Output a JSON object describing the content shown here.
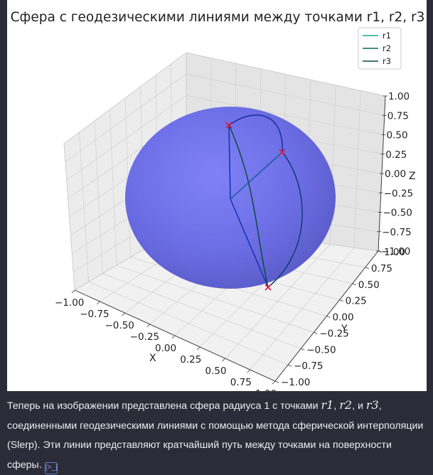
{
  "chart_data": {
    "type": "surface3d",
    "title": "Сфера с геодезическими линиями между точками r1, r2, r3",
    "sphere": {
      "radius": 1,
      "color": "#4040ff",
      "alpha": 0.7
    },
    "xlabel": "X",
    "ylabel": "Y",
    "zlabel": "Z",
    "xlim": [
      -1,
      1
    ],
    "ylim": [
      -1,
      1
    ],
    "zlim": [
      -1,
      1
    ],
    "ticks": [
      "−1.00",
      "−0.75",
      "−0.50",
      "−0.25",
      "0.00",
      "0.25",
      "0.50",
      "0.75",
      "1.00"
    ],
    "grid": true,
    "legend_position": "top-right",
    "series": [
      {
        "name": "r1",
        "color": "#17a589"
      },
      {
        "name": "r2",
        "color": "#0b6b58"
      },
      {
        "name": "r3",
        "color": "#0d4a40"
      }
    ],
    "marker_color": "#d81b3c"
  },
  "caption": {
    "part1": "Теперь на изображении представлена сфера радиуса 1 с точками ",
    "r1": "r1",
    "sep1": ", ",
    "r2": "r2",
    "sep2": ", и ",
    "r3": "r3",
    "part2": ", соединенными геодезическими линиями с помощью метода сферической интерполяции (Slerp). Эти линии представляют кратчайший путь между точками на поверхности сферы.",
    "source_icon": "[>_]"
  }
}
